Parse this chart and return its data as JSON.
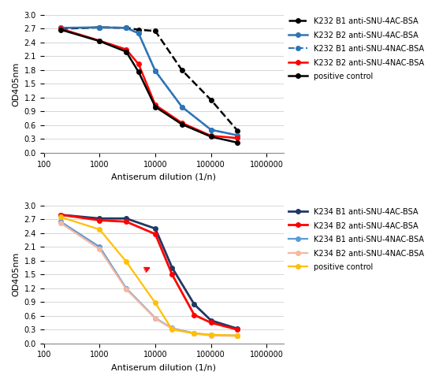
{
  "top": {
    "series": [
      {
        "label": "K232 B1 anti-SNU-4AC-BSA",
        "color": "#000000",
        "linestyle": "--",
        "marker": "o",
        "markersize": 4,
        "linewidth": 1.8,
        "x": [
          200,
          1000,
          3000,
          5000,
          10000,
          30000,
          100000,
          300000
        ],
        "y": [
          2.7,
          2.73,
          2.72,
          2.68,
          2.65,
          1.8,
          1.15,
          0.48
        ]
      },
      {
        "label": "K232 B2 anti-SNU-4AC-BSA",
        "color": "#2e75b6",
        "linestyle": "-",
        "marker": "o",
        "markersize": 4,
        "linewidth": 1.8,
        "x": [
          200,
          1000,
          3000,
          5000,
          10000,
          30000,
          100000,
          300000
        ],
        "y": [
          2.72,
          2.73,
          2.72,
          2.6,
          1.78,
          1.0,
          0.5,
          0.38
        ]
      },
      {
        "label": "K232 B1 anti-SNU-4NAC-BSA",
        "color": "#2e75b6",
        "linestyle": "--",
        "marker": "o",
        "markersize": 4,
        "linewidth": 1.5,
        "x": [
          200,
          1000,
          3000,
          5000,
          10000,
          30000,
          100000,
          300000
        ],
        "y": [
          2.72,
          2.73,
          2.72,
          2.6,
          1.78,
          1.0,
          0.5,
          0.38
        ]
      },
      {
        "label": "K232 B2 anti-SNU-4NAC-BSA",
        "color": "#ff0000",
        "linestyle": "-",
        "marker": "o",
        "markersize": 4,
        "linewidth": 1.8,
        "x": [
          200,
          1000,
          3000,
          5000,
          10000,
          30000,
          100000,
          300000
        ],
        "y": [
          2.7,
          2.44,
          2.25,
          1.93,
          1.04,
          0.65,
          0.37,
          0.32
        ]
      },
      {
        "label": "positive control",
        "color": "#000000",
        "linestyle": "-",
        "marker": "o",
        "markersize": 4,
        "linewidth": 1.8,
        "x": [
          200,
          1000,
          3000,
          5000,
          10000,
          30000,
          100000,
          300000
        ],
        "y": [
          2.68,
          2.43,
          2.2,
          1.76,
          1.0,
          0.62,
          0.35,
          0.22
        ]
      }
    ],
    "xlabel": "Antiserum dilution (1/n)",
    "ylabel": "OD405nm",
    "ylim": [
      0.0,
      3.0
    ],
    "yticks": [
      0.0,
      0.3,
      0.6,
      0.9,
      1.2,
      1.5,
      1.8,
      2.1,
      2.4,
      2.7,
      3.0
    ],
    "xlim_log": [
      100,
      2000000
    ],
    "xticks": [
      100,
      1000,
      10000,
      100000,
      1000000
    ]
  },
  "bottom": {
    "series": [
      {
        "label": "K234 B1 anti-SNU-4AC-BSA",
        "color": "#1f3864",
        "linestyle": "-",
        "marker": "o",
        "markersize": 4,
        "linewidth": 2.0,
        "x": [
          200,
          1000,
          3000,
          10000,
          20000,
          50000,
          100000,
          300000
        ],
        "y": [
          2.8,
          2.72,
          2.72,
          2.5,
          1.65,
          0.85,
          0.5,
          0.32
        ]
      },
      {
        "label": "K234 B2 anti-SNU-4AC-BSA",
        "color": "#ff0000",
        "linestyle": "-",
        "marker": "o",
        "markersize": 4,
        "linewidth": 2.0,
        "x": [
          200,
          1000,
          3000,
          10000,
          20000,
          50000,
          100000,
          300000
        ],
        "y": [
          2.8,
          2.68,
          2.65,
          2.38,
          1.5,
          0.62,
          0.45,
          0.3
        ]
      },
      {
        "label": "K234 B1 anti-SNU-4NAC-BSA",
        "color": "#5b9bd5",
        "linestyle": "-",
        "marker": "o",
        "markersize": 4,
        "linewidth": 1.6,
        "x": [
          200,
          1000,
          3000,
          10000,
          20000,
          50000,
          100000,
          300000
        ],
        "y": [
          2.65,
          2.1,
          1.2,
          0.55,
          0.33,
          0.22,
          0.18,
          0.17
        ]
      },
      {
        "label": "K234 B2 anti-SNU-4NAC-BSA",
        "color": "#f4b8a0",
        "linestyle": "-",
        "marker": "o",
        "markersize": 4,
        "linewidth": 1.6,
        "x": [
          200,
          1000,
          3000,
          10000,
          20000,
          50000,
          100000,
          300000
        ],
        "y": [
          2.62,
          2.05,
          1.18,
          0.54,
          0.32,
          0.21,
          0.17,
          0.16
        ]
      },
      {
        "label": "positive control",
        "color": "#ffc000",
        "linestyle": "-",
        "marker": "o",
        "markersize": 4,
        "linewidth": 1.6,
        "x": [
          200,
          1000,
          3000,
          10000,
          20000,
          50000,
          100000,
          300000
        ],
        "y": [
          2.75,
          2.48,
          1.78,
          0.88,
          0.3,
          0.22,
          0.19,
          0.17
        ]
      }
    ],
    "xlabel": "Antiserum dilution (1/n)",
    "ylabel": "OD405nm",
    "ylim": [
      0.0,
      3.0
    ],
    "yticks": [
      0.0,
      0.3,
      0.6,
      0.9,
      1.2,
      1.5,
      1.8,
      2.1,
      2.4,
      2.7,
      3.0
    ],
    "xlim_log": [
      100,
      2000000
    ],
    "xticks": [
      100,
      1000,
      10000,
      100000,
      1000000
    ],
    "arrow": {
      "x_start": 6000,
      "y_start": 1.58,
      "x_end": 9000,
      "y_end": 1.68
    }
  },
  "legend_fontsize": 7,
  "axis_fontsize": 8,
  "tick_fontsize": 7,
  "bg_color": "#ffffff"
}
